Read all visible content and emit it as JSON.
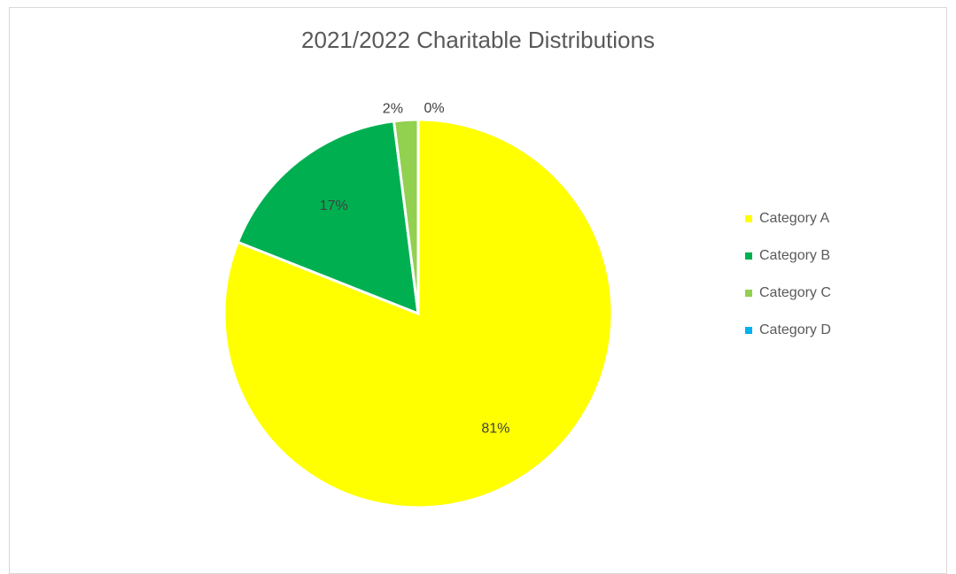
{
  "chart_data": {
    "type": "pie",
    "title": "2021/2022 Charitable Distributions",
    "categories": [
      "Category A",
      "Category B",
      "Category C",
      "Category D"
    ],
    "values": [
      81,
      17,
      2,
      0
    ],
    "data_labels": [
      "81%",
      "17%",
      "2%",
      "0%"
    ],
    "colors": [
      "#FFFF00",
      "#00B050",
      "#92D050",
      "#00B0F0"
    ],
    "legend_position": "right"
  }
}
